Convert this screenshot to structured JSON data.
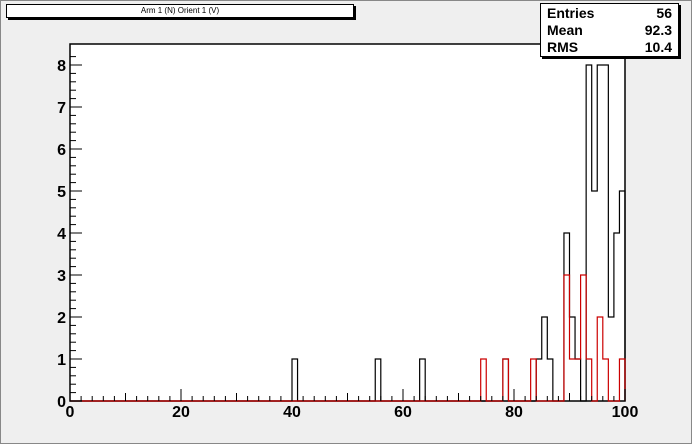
{
  "title": "Arm 1 (N) Orient 1 (V)",
  "stats": [
    {
      "label": "Entries",
      "value": "56"
    },
    {
      "label": "Mean",
      "value": "92.3"
    },
    {
      "label": "RMS",
      "value": "10.4"
    }
  ],
  "colors": {
    "canvas_bg": "#efefef",
    "frame_bg": "#ffffff",
    "series_black": "#000000",
    "series_red": "#cc0000"
  },
  "chart_data": {
    "type": "histogram",
    "title": "Arm 1 (N) Orient 1 (V)",
    "xlim": [
      0,
      100
    ],
    "ylim": [
      0,
      8.5
    ],
    "bin_width": 1,
    "x_ticks": [
      0,
      20,
      40,
      60,
      80,
      100
    ],
    "y_ticks": [
      0,
      1,
      2,
      3,
      4,
      5,
      6,
      7,
      8
    ],
    "grid": false,
    "series": [
      {
        "color": "black",
        "bins": [
          {
            "x": 40,
            "y": 1
          },
          {
            "x": 55,
            "y": 1
          },
          {
            "x": 63,
            "y": 1
          },
          {
            "x": 78,
            "y": 1
          },
          {
            "x": 84,
            "y": 1
          },
          {
            "x": 85,
            "y": 2
          },
          {
            "x": 86,
            "y": 1
          },
          {
            "x": 89,
            "y": 4
          },
          {
            "x": 90,
            "y": 2
          },
          {
            "x": 91,
            "y": 1
          },
          {
            "x": 93,
            "y": 8
          },
          {
            "x": 94,
            "y": 5
          },
          {
            "x": 95,
            "y": 8
          },
          {
            "x": 96,
            "y": 8
          },
          {
            "x": 97,
            "y": 2
          },
          {
            "x": 98,
            "y": 4
          },
          {
            "x": 99,
            "y": 5
          }
        ]
      },
      {
        "color": "red",
        "bins": [
          {
            "x": 74,
            "y": 1
          },
          {
            "x": 78,
            "y": 1
          },
          {
            "x": 83,
            "y": 1
          },
          {
            "x": 89,
            "y": 3
          },
          {
            "x": 90,
            "y": 1
          },
          {
            "x": 91,
            "y": 1
          },
          {
            "x": 92,
            "y": 3
          },
          {
            "x": 93,
            "y": 1
          },
          {
            "x": 95,
            "y": 2
          },
          {
            "x": 96,
            "y": 1
          },
          {
            "x": 99,
            "y": 1
          }
        ]
      }
    ]
  }
}
